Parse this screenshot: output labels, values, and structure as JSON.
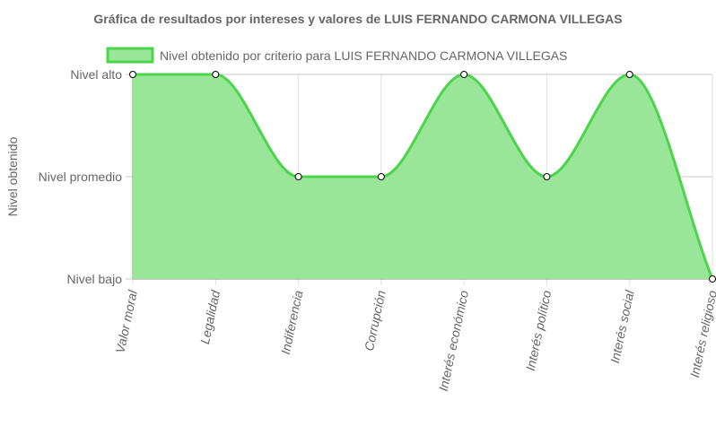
{
  "chart_data": {
    "type": "area",
    "title": "Gráfica de resultados por intereses y valores de LUIS FERNANDO CARMONA VILLEGAS",
    "ylabel": "Nivel obtenido",
    "xlabel": "",
    "categories": [
      "Valor moral",
      "Legalidad",
      "Indiferencia",
      "Corrupción",
      "Interés económico",
      "Interés político",
      "Interés social",
      "Interés religioso"
    ],
    "y_ticks": [
      "Nivel bajo",
      "Nivel promedio",
      "Nivel alto"
    ],
    "ylim": [
      0,
      2
    ],
    "series": [
      {
        "name": "Nivel obtenido por criterio para LUIS FERNANDO CARMONA VILLEGAS",
        "values": [
          2,
          2,
          1,
          1,
          2,
          1,
          2,
          0
        ],
        "line_color": "#4cd44c",
        "fill_color": "#99e699"
      }
    ],
    "grid": true,
    "legend_position": "top",
    "smooth": true
  }
}
